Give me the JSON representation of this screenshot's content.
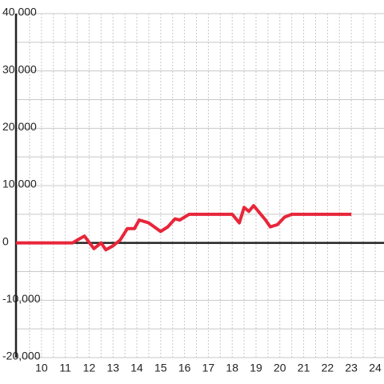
{
  "chart_data": {
    "type": "line",
    "x": [
      8.93,
      11.3,
      11.5,
      11.8,
      12.2,
      12.5,
      12.7,
      13.0,
      13.3,
      13.6,
      13.9,
      14.1,
      14.5,
      15.0,
      15.3,
      15.6,
      15.8,
      16.2,
      17.0,
      18.0,
      18.3,
      18.5,
      18.7,
      18.9,
      19.4,
      19.6,
      19.9,
      20.2,
      20.5,
      23.0
    ],
    "series": [
      {
        "color": "#e8263a",
        "values": [
          0,
          0,
          500,
          1200,
          -1000,
          0,
          -1200,
          -500,
          500,
          2500,
          2500,
          4000,
          3500,
          2000,
          2800,
          4200,
          4000,
          5000,
          5000,
          5000,
          3500,
          6200,
          5500,
          6500,
          4000,
          2800,
          3200,
          4500,
          5000,
          5000
        ]
      }
    ],
    "xlim": [
      8.93,
      24.37
    ],
    "xticks": [
      10,
      11,
      12,
      13,
      14,
      15,
      16,
      17,
      18,
      19,
      20,
      21,
      22,
      23,
      24
    ],
    "ylim": [
      -20000,
      40000
    ],
    "yticks": [
      {
        "value": 40000,
        "label": "40,000"
      },
      {
        "value": 30000,
        "label": "30,000"
      },
      {
        "value": 20000,
        "label": "20,000"
      },
      {
        "value": 10000,
        "label": "10,000"
      },
      0,
      {
        "value": -10000,
        "label": "-10,000"
      },
      {
        "value": -20000,
        "label": "-20,000"
      }
    ],
    "grid": true
  }
}
